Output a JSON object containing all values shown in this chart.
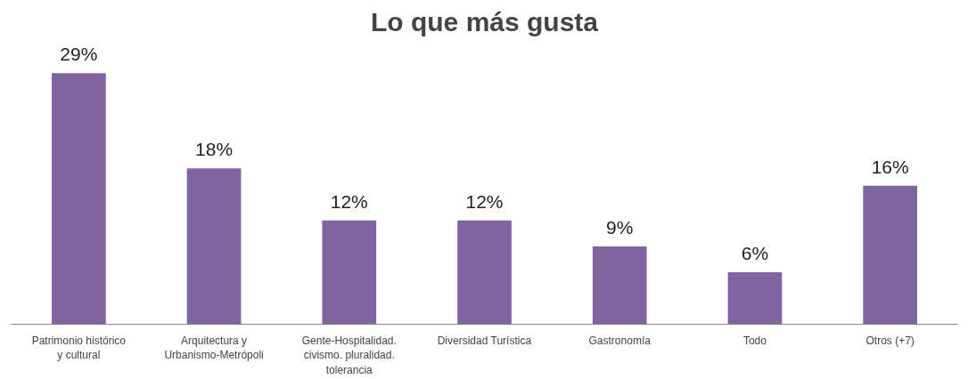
{
  "chart_data": {
    "type": "bar",
    "title": "Lo que más gusta",
    "categories": [
      "Patrimonio histórico y cultural",
      "Arquitectura y Urbanismo-Metrópoli",
      "Gente-Hospitalidad. civismo. pluralidad. tolerancia",
      "Diversidad Turística",
      "Gastronomía",
      "Todo",
      "Otros (+7)"
    ],
    "values": [
      29,
      18,
      12,
      12,
      9,
      6,
      16
    ],
    "value_labels": [
      "29%",
      "18%",
      "12%",
      "12%",
      "9%",
      "6%",
      "16%"
    ],
    "color": "#8064a2",
    "grid": false
  }
}
